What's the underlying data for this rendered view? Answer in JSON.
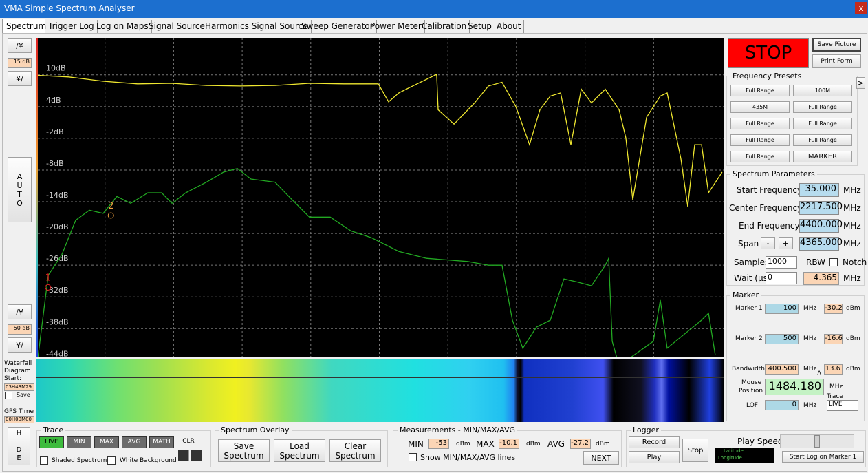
{
  "window": {
    "title": "VMA Simple Spectrum Analyser",
    "close": "x"
  },
  "tabs": [
    "Spectrum",
    "Trigger Log",
    "Log on Maps",
    "Signal Source",
    "Harmonics Signal Source",
    "Sweep Generator",
    "Power Meter",
    "Calibration",
    "Setup",
    "About"
  ],
  "left": {
    "top_up": "/¥",
    "top_step": "15 dB",
    "top_down": "¥/",
    "auto": [
      "A",
      "U",
      "T",
      "O"
    ],
    "bottom_up": "/¥",
    "bottom_step": "50 dB",
    "bottom_down": "¥/",
    "waterfall_label": [
      "Waterfall",
      "Diagram",
      "Start:"
    ],
    "waterfall_start": "03H43M29",
    "save": "Save",
    "gps_label": "GPS Time",
    "gps_time": "00H00M00",
    "hide": [
      "H",
      "I",
      "D",
      "E"
    ]
  },
  "spectrum": {
    "type": "line",
    "xlim": [
      35,
      4400
    ],
    "ylim": [
      -43.3,
      17
    ],
    "yticks": [
      {
        "value": 10,
        "label": "10dB"
      },
      {
        "value": 4,
        "label": "4dB"
      },
      {
        "value": -2,
        "label": "-2dB"
      },
      {
        "value": -8,
        "label": "-8dB"
      },
      {
        "value": -14,
        "label": "-14dB"
      },
      {
        "value": -20,
        "label": "-20dB"
      },
      {
        "value": -26,
        "label": "-26dB"
      },
      {
        "value": -32,
        "label": "-32dB"
      },
      {
        "value": -38,
        "label": "-38dB"
      },
      {
        "value": -44,
        "label": "-44dB"
      }
    ],
    "traces": [
      {
        "color": "#f0e830",
        "x": [
          35,
          232,
          451,
          670,
          889,
          1108,
          1327,
          1545,
          1764,
          1983,
          2202,
          2268,
          2333,
          2421,
          2574,
          2583,
          2684,
          2815,
          2903,
          2990,
          3078,
          3165,
          3231,
          3297,
          3363,
          3428,
          3494,
          3559,
          3647,
          3735,
          3778,
          3822,
          3910,
          3997,
          4041,
          4128,
          4172,
          4216,
          4260,
          4304,
          4391
        ],
        "values": [
          9.9,
          9.6,
          8.8,
          8.3,
          8.4,
          8,
          7.9,
          8,
          8.4,
          8.3,
          8.3,
          4.9,
          6.6,
          7.9,
          10.1,
          3.4,
          0.7,
          4.7,
          7.9,
          8.6,
          4,
          -3.2,
          3.4,
          6,
          6.6,
          -3.2,
          7.3,
          4.7,
          7.3,
          3.4,
          -1.9,
          -13.6,
          2,
          6,
          6.6,
          -5.8,
          -14.9,
          -3.2,
          -3.2,
          -12.3,
          -8.4
        ]
      },
      {
        "color": "#22a822",
        "x": [
          35,
          101,
          188,
          276,
          363,
          451,
          538,
          626,
          735,
          823,
          889,
          976,
          1108,
          1217,
          1305,
          1392,
          1545,
          1633,
          1764,
          1896,
          2027,
          2158,
          2333,
          2509,
          2771,
          2903,
          2990,
          3056,
          3122,
          3209,
          3297,
          3384,
          3472,
          3559,
          3647,
          3669,
          3691,
          3735,
          3953,
          3997,
          4041,
          4260,
          4304,
          4347
        ],
        "values": [
          -43.6,
          -27.9,
          -24,
          -17.5,
          -15.6,
          -16.2,
          -13,
          -14.3,
          -12.3,
          -12.3,
          -14.3,
          -12.3,
          -10.3,
          -8.4,
          -7.7,
          -9.7,
          -10.3,
          -13,
          -16.9,
          -16.9,
          -19.5,
          -20.8,
          -23.4,
          -24.7,
          -25.3,
          -26,
          -26,
          -36.4,
          -41.7,
          -37.7,
          -36.4,
          -28.6,
          -29.2,
          -29.9,
          -26,
          -24.7,
          -40.4,
          -45,
          -40.4,
          -32.6,
          -41.7,
          -36.4,
          -35.1,
          -43
        ]
      }
    ],
    "markers": [
      {
        "label": "1",
        "color": "#e02020"
      },
      {
        "label": "2",
        "color": "#f0a040"
      }
    ]
  },
  "controls": {
    "stop": "STOP",
    "save_picture": "Save Picture",
    "print_form": "Print Form"
  },
  "presets": {
    "title": "Frequency Presets",
    "more": ">",
    "buttons": [
      "Full Range",
      "100M",
      "435M",
      "Full Range",
      "Full Range",
      "Full Range",
      "Full Range",
      "Full Range",
      "Full Range",
      "MARKER"
    ]
  },
  "parameters": {
    "title": "Spectrum Parameters",
    "rows": [
      {
        "label": "Start Frequency",
        "value": "35.000",
        "unit": "MHz"
      },
      {
        "label": "Center Frequency",
        "value": "2217.500",
        "unit": "MHz"
      },
      {
        "label": "End Frequency",
        "value": "4400.000",
        "unit": "MHz"
      },
      {
        "label": "Span",
        "value": "4365.000",
        "unit": "MHz"
      }
    ],
    "span_minus": "-",
    "span_plus": "+",
    "samples_label": "Samples",
    "samples": "1000",
    "rbw_label": "RBW",
    "notch_label": "Notch",
    "wait_label": "Wait (µs)",
    "wait": "0",
    "rbw": "4.365",
    "rbw_unit": "MHz"
  },
  "marker": {
    "title": "Marker",
    "markers": [
      {
        "label": "Marker 1",
        "freq": 100,
        "freq_unit": "MHz",
        "level": -30.2,
        "level_unit": "dBm"
      },
      {
        "label": "Marker 2",
        "freq": 500,
        "freq_unit": "MHz",
        "level": -16.6,
        "level_unit": "dBm"
      }
    ],
    "bandwidth": {
      "label": "Bandwidth",
      "value": "400.500",
      "unit": "MHz",
      "level": 13.6,
      "level_unit": "dBm",
      "delta": "Δ"
    },
    "mouse": {
      "label": [
        "Mouse",
        "Position"
      ],
      "value": "1484.180",
      "unit": "MHz"
    },
    "trace_label": "Trace",
    "trace": "LIVE",
    "lof_label": "LOF",
    "lof": 0,
    "lof_unit": "MHz"
  },
  "trace": {
    "title": "Trace",
    "buttons": [
      "LIVE",
      "MIN",
      "MAX",
      "AVG",
      "MATH"
    ],
    "clear": "CLR",
    "shaded": "Shaded Spectrum",
    "white_bg": "White Background"
  },
  "overlay": {
    "title": "Spectrum Overlay",
    "buttons": [
      [
        "Save",
        "Spectrum"
      ],
      [
        "Load",
        "Spectrum"
      ],
      [
        "Clear",
        "Spectrum"
      ]
    ]
  },
  "measurements": {
    "title": "Measurements - MIN/MAX/AVG",
    "items": [
      {
        "label": "MIN",
        "value": -53,
        "unit": "dBm"
      },
      {
        "label": "MAX",
        "value": -10.1,
        "unit": "dBm"
      },
      {
        "label": "AVG",
        "value": -27.2,
        "unit": "dBm"
      }
    ],
    "show_lines": "Show MIN/MAX/AVG lines",
    "next": "NEXT"
  },
  "logger": {
    "title": "Logger",
    "record": "Record",
    "play": "Play",
    "stop": "Stop",
    "play_speed": "Play Speed",
    "start_log": "Start Log on Marker 1",
    "gps": [
      "Latitude",
      "Longitude"
    ]
  }
}
